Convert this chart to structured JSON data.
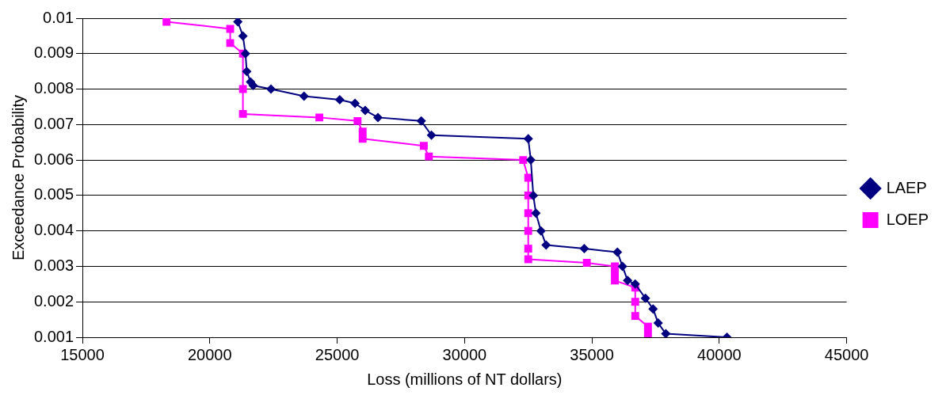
{
  "chart_data": {
    "type": "line",
    "xlabel": "Loss (millions of NT dollars)",
    "ylabel": "Exceedance Probability",
    "xlim": [
      15000,
      45000
    ],
    "xticks": [
      15000,
      20000,
      25000,
      30000,
      35000,
      40000,
      45000
    ],
    "ylim": [
      0.001,
      0.01
    ],
    "yticks": [
      0.001,
      0.002,
      0.003,
      0.004,
      0.005,
      0.006,
      0.007,
      0.008,
      0.009,
      0.01
    ],
    "grid": "y",
    "legend": "right",
    "line_style": "solid",
    "series": [
      {
        "name": "LAEP",
        "color": "#000080",
        "marker": "diamond",
        "x": [
          21100,
          21300,
          21400,
          21450,
          21600,
          21700,
          22400,
          23700,
          25100,
          25700,
          26100,
          26600,
          28300,
          28700,
          32500,
          32600,
          32700,
          32800,
          33000,
          33200,
          34700,
          36000,
          36200,
          36400,
          36700,
          37100,
          37400,
          37600,
          37900,
          40300
        ],
        "values": [
          0.0099,
          0.0095,
          0.009,
          0.0085,
          0.0082,
          0.0081,
          0.008,
          0.0078,
          0.0077,
          0.0076,
          0.0074,
          0.0072,
          0.0071,
          0.0067,
          0.0066,
          0.006,
          0.005,
          0.0045,
          0.004,
          0.0036,
          0.0035,
          0.0034,
          0.003,
          0.0026,
          0.0025,
          0.0021,
          0.0018,
          0.0014,
          0.0011,
          0.001
        ]
      },
      {
        "name": "LOEP",
        "color": "#ff00ff",
        "marker": "square",
        "x": [
          18300,
          20800,
          20800,
          21300,
          21300,
          21300,
          24300,
          25800,
          26000,
          26000,
          28400,
          28600,
          32300,
          32500,
          32500,
          32500,
          32500,
          32500,
          32500,
          34800,
          35900,
          35900,
          35900,
          36700,
          36700,
          36700,
          37200,
          37200
        ],
        "values": [
          0.0099,
          0.0097,
          0.0093,
          0.009,
          0.008,
          0.0073,
          0.0072,
          0.0071,
          0.0068,
          0.0066,
          0.0064,
          0.0061,
          0.006,
          0.0055,
          0.005,
          0.0045,
          0.004,
          0.0035,
          0.0032,
          0.0031,
          0.003,
          0.0028,
          0.0026,
          0.0024,
          0.002,
          0.0016,
          0.0013,
          0.0011
        ]
      }
    ]
  }
}
